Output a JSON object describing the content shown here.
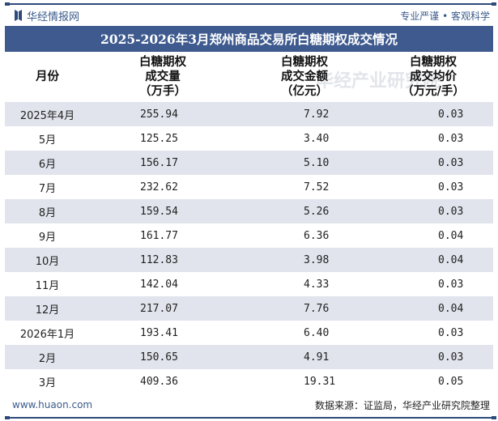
{
  "header": {
    "brand": "华经情报网",
    "slogan": "专业严谨 • 客观科学"
  },
  "title": "2025-2026年3月郑州商品交易所白糖期权成交情况",
  "table": {
    "columns": [
      {
        "line1": "",
        "line2": "月份",
        "line3": ""
      },
      {
        "line1": "白糖期权",
        "line2": "成交量",
        "line3": "（万手）"
      },
      {
        "line1": "白糖期权",
        "line2": "成交金额",
        "line3": "（亿元）"
      },
      {
        "line1": "白糖期权",
        "line2": "成交均价",
        "line3": "（万元/手）"
      }
    ],
    "rows": [
      [
        "2025年4月",
        "255.94",
        "7.92",
        "0.03"
      ],
      [
        "5月",
        "125.25",
        "3.40",
        "0.03"
      ],
      [
        "6月",
        "156.17",
        "5.10",
        "0.03"
      ],
      [
        "7月",
        "232.62",
        "7.52",
        "0.03"
      ],
      [
        "8月",
        "159.54",
        "5.26",
        "0.03"
      ],
      [
        "9月",
        "161.77",
        "6.36",
        "0.04"
      ],
      [
        "10月",
        "112.83",
        "3.98",
        "0.04"
      ],
      [
        "11月",
        "142.04",
        "4.33",
        "0.03"
      ],
      [
        "12月",
        "217.07",
        "7.76",
        "0.04"
      ],
      [
        "2026年1月",
        "193.41",
        "6.40",
        "0.03"
      ],
      [
        "2月",
        "150.65",
        "4.91",
        "0.03"
      ],
      [
        "3月",
        "409.36",
        "19.31",
        "0.05"
      ]
    ]
  },
  "footer": {
    "site": "www.huaon.com",
    "source": "数据来源：证监局，华经产业研究院整理"
  },
  "watermark": {
    "name": "华经产业研究院",
    "url": "www.huaon.com"
  },
  "colors": {
    "title_bg": "#3e5a8e",
    "brand": "#2d4a7a",
    "row_alt": "#e1e4ec"
  },
  "chart_data": {
    "type": "table",
    "title": "2025-2026年3月郑州商品交易所白糖期权成交情况",
    "columns": [
      "月份",
      "白糖期权成交量（万手）",
      "白糖期权成交金额（亿元）",
      "白糖期权成交均价（万元/手）"
    ],
    "categories": [
      "2025年4月",
      "5月",
      "6月",
      "7月",
      "8月",
      "9月",
      "10月",
      "11月",
      "12月",
      "2026年1月",
      "2月",
      "3月"
    ],
    "series": [
      {
        "name": "白糖期权成交量（万手）",
        "values": [
          255.94,
          125.25,
          156.17,
          232.62,
          159.54,
          161.77,
          112.83,
          142.04,
          217.07,
          193.41,
          150.65,
          409.36
        ]
      },
      {
        "name": "白糖期权成交金额（亿元）",
        "values": [
          7.92,
          3.4,
          5.1,
          7.52,
          5.26,
          6.36,
          3.98,
          4.33,
          7.76,
          6.4,
          4.91,
          19.31
        ]
      },
      {
        "name": "白糖期权成交均价（万元/手）",
        "values": [
          0.03,
          0.03,
          0.03,
          0.03,
          0.03,
          0.04,
          0.04,
          0.03,
          0.04,
          0.03,
          0.03,
          0.05
        ]
      }
    ],
    "source": "数据来源：证监局，华经产业研究院整理"
  }
}
